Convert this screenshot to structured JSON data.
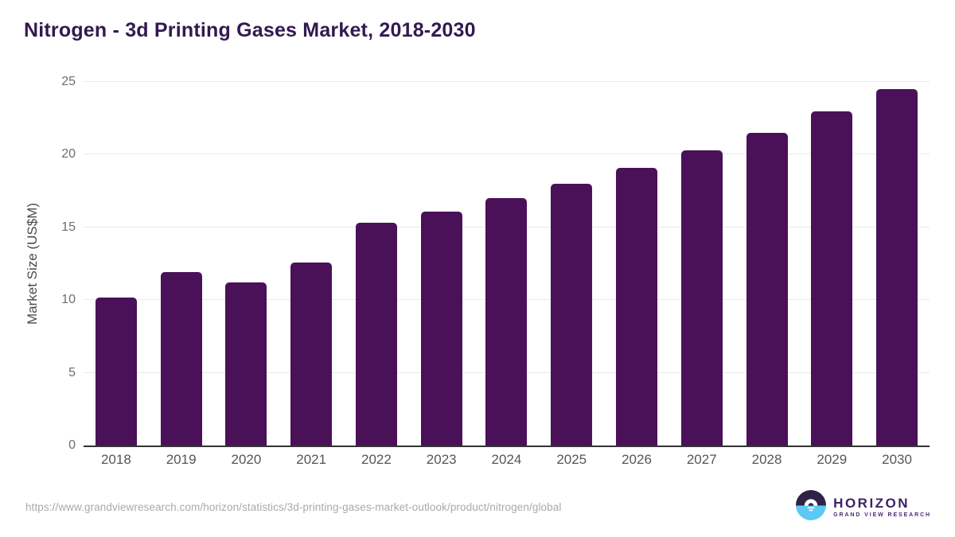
{
  "chart_data": {
    "type": "bar",
    "title": "Nitrogen - 3d Printing Gases Market, 2018-2030",
    "xlabel": "",
    "ylabel": "Market Size (US$M)",
    "categories": [
      "2018",
      "2019",
      "2020",
      "2021",
      "2022",
      "2023",
      "2024",
      "2025",
      "2026",
      "2027",
      "2028",
      "2029",
      "2030"
    ],
    "values": [
      10.2,
      11.9,
      11.2,
      12.6,
      15.3,
      16.1,
      17.0,
      18.0,
      19.1,
      20.3,
      21.5,
      23.0,
      24.5
    ],
    "ylim": [
      0,
      25
    ],
    "yticks": [
      0,
      5,
      10,
      15,
      20,
      25
    ],
    "grid": "horizontal",
    "legend": "none",
    "bar_color": "#4a1158"
  },
  "colors": {
    "title": "#32194f",
    "bar": "#4a1158",
    "axis_line": "#333333",
    "gridline": "#e9e9e9",
    "tick_text": "#6e6e6e",
    "logo_dark": "#2e2248",
    "logo_blue": "#5bc9f3",
    "logo_text": "#3b2366"
  },
  "footer": {
    "source_url": "https://www.grandviewresearch.com/horizon/statistics/3d-printing-gases-market-outlook/product/nitrogen/global",
    "logo": {
      "name": "HORIZON",
      "subtitle": "GRAND VIEW RESEARCH"
    }
  }
}
